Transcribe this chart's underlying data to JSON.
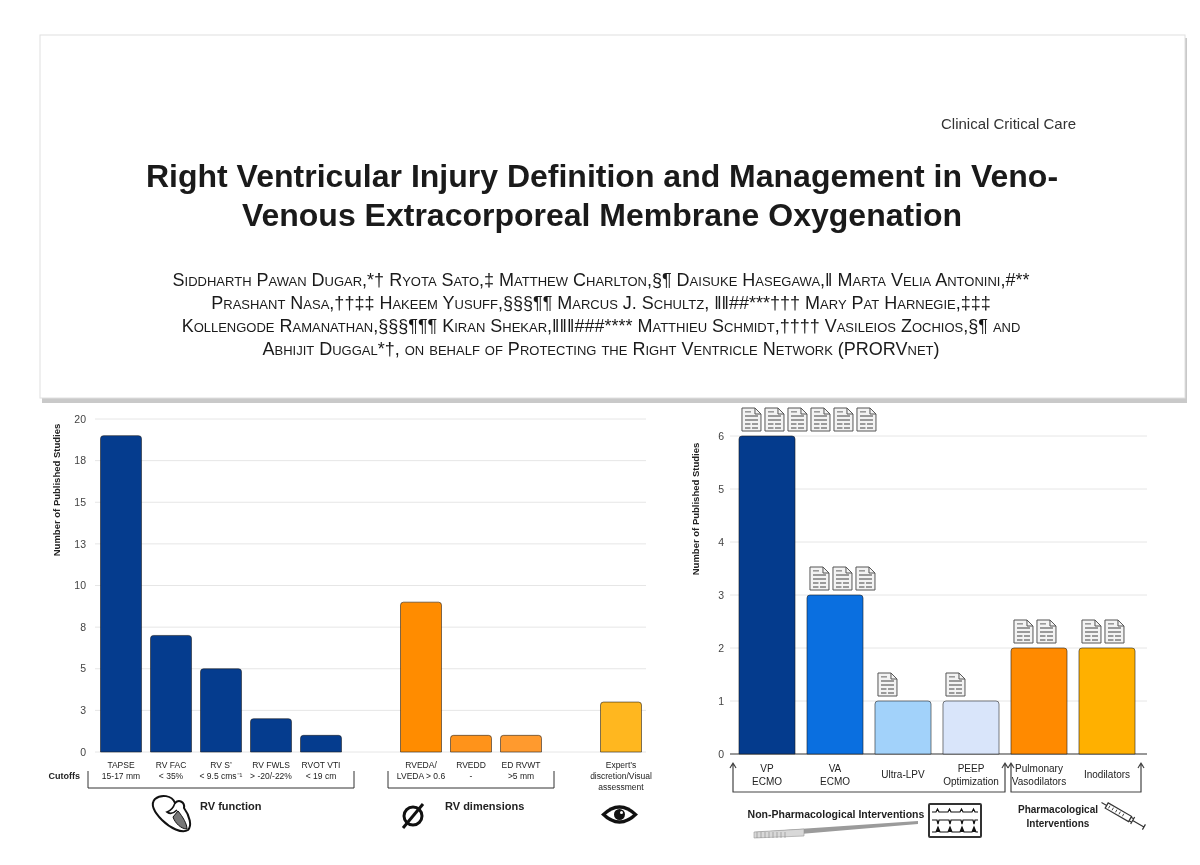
{
  "chart_data": [
    {
      "type": "other",
      "title": "Right Ventricular Injury Definition and Management in Veno-\nVenous Extracorporeal Membrane Oxygenation",
      "subtitle": "Siddharth Pawan Dugar,*† Ryota Sato,‡ Matthew Charlton,§¶ Daisuke Hasegawa,‖ Marta Velia Antonini,#**\nPrashant Nasa,††‡‡ Hakeem Yusuff,§§§¶¶ Marcus J. Schultz, ‖‖##***††† Mary Pat Harnegie,‡‡‡\nKollengode Ramanathan,§§§¶¶¶ Kiran Shekar,‖‖‖###**** Matthieu Schmidt,†††† Vasileios Zochios,§¶ and\nAbhijit Duggal*†, on behalf of Protecting the Right Ventricle Network (PRORVnet)",
      "annotations": [
        "Clinical Critical Care"
      ]
    },
    {
      "type": "bar",
      "ylabel": "Number of Published Studies",
      "categories": [
        "TAPSE\n15-17 mm",
        "RV FAC\n< 35%",
        "RV S’\n< 9.5 cms⁻¹",
        "RV FWLS\n> -20/-22%",
        "RVOT VTI\n< 19 cm",
        null,
        "RVEDA/\nLVEDA > 0.6",
        "RVEDD\n-",
        "ED RVWT\n>5 mm",
        null,
        "Expert’s\ndiscretion/Visual\nassessment"
      ],
      "values": [
        19,
        7,
        5,
        2,
        1,
        null,
        9,
        1,
        1,
        null,
        3
      ],
      "colors": [
        "#053c8e",
        "#053c8e",
        "#053c8e",
        "#053c8e",
        "#053c8e",
        null,
        "#ff8c00",
        "#ff931a",
        "#ff9a2e",
        null,
        "#ffb71f"
      ],
      "ylim": [
        0,
        20
      ],
      "yticks": [
        0,
        {
          "value": 2.5,
          "label": "3"
        },
        5,
        {
          "value": 7.5,
          "label": "8"
        },
        10,
        {
          "value": 12.5,
          "label": "13"
        },
        15,
        {
          "value": 17.5,
          "label": "18"
        },
        20
      ],
      "grid": "y",
      "annotations": [
        "Cutoffs",
        "RV function",
        "RV dimensions"
      ]
    },
    {
      "type": "bar",
      "ylabel": "Number of Published Studies",
      "categories": [
        "VP\nECMO",
        "VA\nECMO",
        "Ultra-LPV",
        "PEEP\nOptimization",
        "Pulmonary\nVasodilators",
        "Inodilators"
      ],
      "values": [
        6,
        3,
        1,
        1,
        2,
        2
      ],
      "colors": [
        "#043b8d",
        "#0a6fe0",
        "#a2d2fa",
        "#d9e5fa",
        "#ff8a00",
        "#ffb000"
      ],
      "ylim": [
        0,
        6
      ],
      "yticks": [
        0,
        1,
        2,
        3,
        4,
        5,
        6
      ],
      "grid": "y",
      "annotations": [
        "Non-Pharmacological Interventions",
        "Pharmacological\nInterventions"
      ]
    }
  ]
}
